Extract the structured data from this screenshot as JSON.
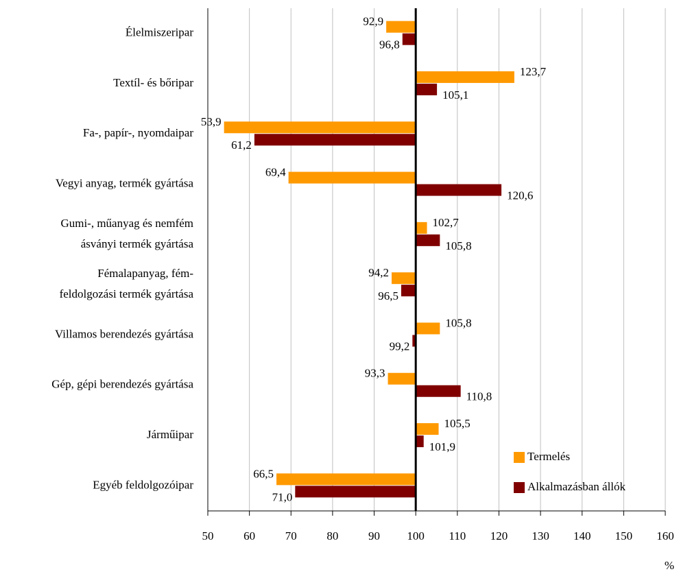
{
  "chart_data": {
    "type": "bar",
    "orientation": "horizontal",
    "categories": [
      "Élelmiszeripar",
      "Textíl- és bőripar",
      "Fa-, papír-, nyomdaipar",
      "Vegyi anyag, termék gyártása",
      [
        "Gumi-, műanyag és nemfém",
        "ásványi termék gyártása"
      ],
      [
        "Fémalapanyag, fém-",
        "feldolgozási termék gyártása"
      ],
      "Villamos berendezés gyártása",
      "Gép, gépi berendezés gyártása",
      "Járműipar",
      "Egyéb feldolgozóipar"
    ],
    "series": [
      {
        "name": "Termelés",
        "color": "#ff9900",
        "values": [
          92.9,
          123.7,
          53.9,
          69.4,
          102.7,
          94.2,
          105.8,
          93.3,
          105.5,
          66.5
        ],
        "value_labels": [
          "92,9",
          "123,7",
          "53,9",
          "69,4",
          "102,7",
          "94,2",
          "105,8",
          "93,3",
          "105,5",
          "66,5"
        ]
      },
      {
        "name": "Alkalmazásban állók",
        "color": "#800000",
        "values": [
          96.8,
          105.1,
          61.2,
          120.6,
          105.8,
          96.5,
          99.2,
          110.8,
          101.9,
          71.0
        ],
        "value_labels": [
          "96,8",
          "105,1",
          "61,2",
          "120,6",
          "105,8",
          "96,5",
          "99,2",
          "110,8",
          "101,9",
          "71,0"
        ]
      }
    ],
    "baseline": 100,
    "xlim": [
      50,
      160
    ],
    "xticks": [
      50,
      60,
      70,
      80,
      90,
      100,
      110,
      120,
      130,
      140,
      150,
      160
    ],
    "xlabel": "%",
    "grid": true,
    "legend": "lower right"
  }
}
